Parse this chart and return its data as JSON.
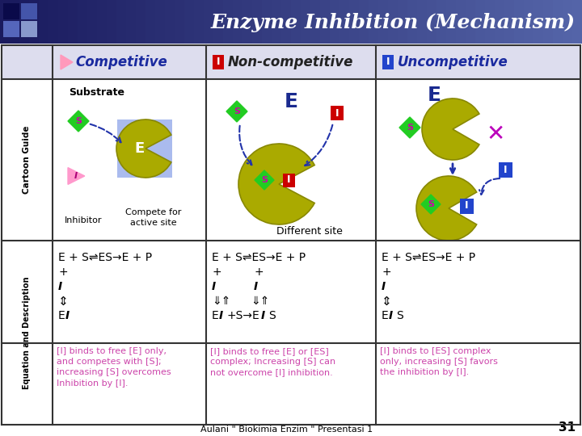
{
  "title": "Enzyme Inhibition (Mechanism)",
  "col1_header": "Competitive",
  "col2_header": "Non-competitive",
  "col3_header": "Uncompetitive",
  "eq1_line1": "E + S⇌ES→E + P",
  "eq1_line2": "+",
  "eq1_line3": "I",
  "eq1_line4": "⇕",
  "eq1_line5_pre": "E",
  "eq1_line5_I": "I",
  "eq2_line1": "E + S⇌ES→E + P",
  "eq2_line2": "+          +",
  "eq2_line3_I1": "I",
  "eq2_line3_I2": "I",
  "eq2_line4a": "⇓⇑",
  "eq2_line4b": "⇓⇑",
  "eq2_line5_pre": "E",
  "eq2_line5_I": "I",
  "eq2_line5_suf": "+S→E",
  "eq2_line5_I2": "I",
  "eq2_line5_S": "S",
  "eq3_line1": "E + S⇌ES→E + P",
  "eq3_line2": "+",
  "eq3_line3": "I",
  "eq3_line4": "⇕",
  "eq3_line5_pre": "E",
  "eq3_line5_I": "I",
  "eq3_line5_S": "S",
  "desc1": "[I] binds to free [E] only,\nand competes with [S];\nincreasing [S] overcomes\nInhibition by [I].",
  "desc2": "[I] binds to free [E] or [ES]\ncomplex; Increasing [S] can\nnot overcome [I] inhibition.",
  "desc3": "[I] binds to [ES] complex\nonly, increasing [S] favors\nthe inhibition by [I].",
  "footer": "Aulani \" Biokimia Enzim \" Presentasi 1",
  "footer_num": "31",
  "title_color_dark": "#1A1A5E",
  "title_color_mid": "#3344AA",
  "title_text_color": "#FFFFFF",
  "border_color": "#333333",
  "header_bg": "#DDDDEE",
  "enzyme_color": "#AAAA00",
  "enzyme_edge": "#888800",
  "S_color": "#22CC22",
  "S_text": "#CC00AA",
  "I_pink_color": "#FF99CC",
  "I_pink_text": "#AA0077",
  "I_red_color": "#CC0000",
  "I_blue_color": "#2244CC",
  "blue_box_color": "#AABBEE",
  "E_label_color": "#1A2A8F",
  "arrow_color": "#2233AA",
  "x_color": "#BB00BB",
  "desc_color": "#CC44AA",
  "eq_I_color": "#000000",
  "table_lw": 1.5,
  "c0": 2,
  "c1": 65,
  "c2": 255,
  "c3": 465,
  "c4": 718,
  "r0": 56,
  "r1": 98,
  "r2": 298,
  "r3": 425,
  "r4": 526
}
